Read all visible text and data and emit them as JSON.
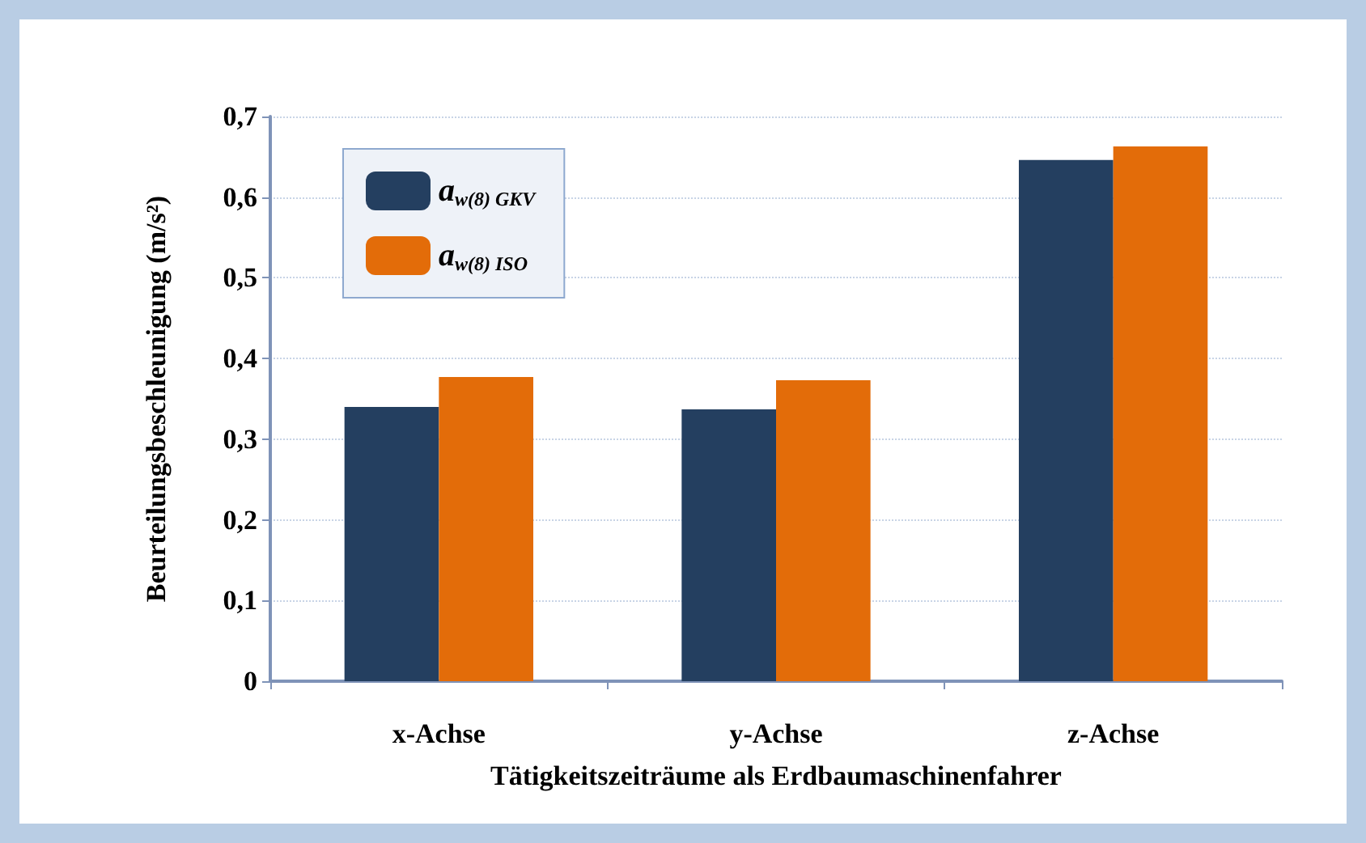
{
  "chart_data": {
    "type": "bar",
    "xlabel": "Tätigkeitszeiträume als Erdbaumaschinenfahrer",
    "ylabel": "Beurteilungsbeschleunigung (m/s²)",
    "categories": [
      "x-Achse",
      "y-Achse",
      "z-Achse"
    ],
    "series": [
      {
        "name": "a$_{w(8) GKV}$",
        "color": "#243f60",
        "values": [
          0.34,
          0.337,
          0.646
        ]
      },
      {
        "name": "a$_{w(8) ISO}$",
        "color": "#e36c09",
        "values": [
          0.377,
          0.373,
          0.663
        ]
      }
    ],
    "ylim": [
      0,
      0.7
    ],
    "yticks": [
      {
        "value": 0,
        "label": "0"
      },
      {
        "value": 0.1,
        "label": "0,1"
      },
      {
        "value": 0.2,
        "label": "0,2"
      },
      {
        "value": 0.3,
        "label": "0,3"
      },
      {
        "value": 0.4,
        "label": "0,4"
      },
      {
        "value": 0.5,
        "label": "0,5"
      },
      {
        "value": 0.6,
        "label": "0,6"
      },
      {
        "value": 0.7,
        "label": "0,7"
      }
    ],
    "grid": "y",
    "legend": "top left"
  }
}
